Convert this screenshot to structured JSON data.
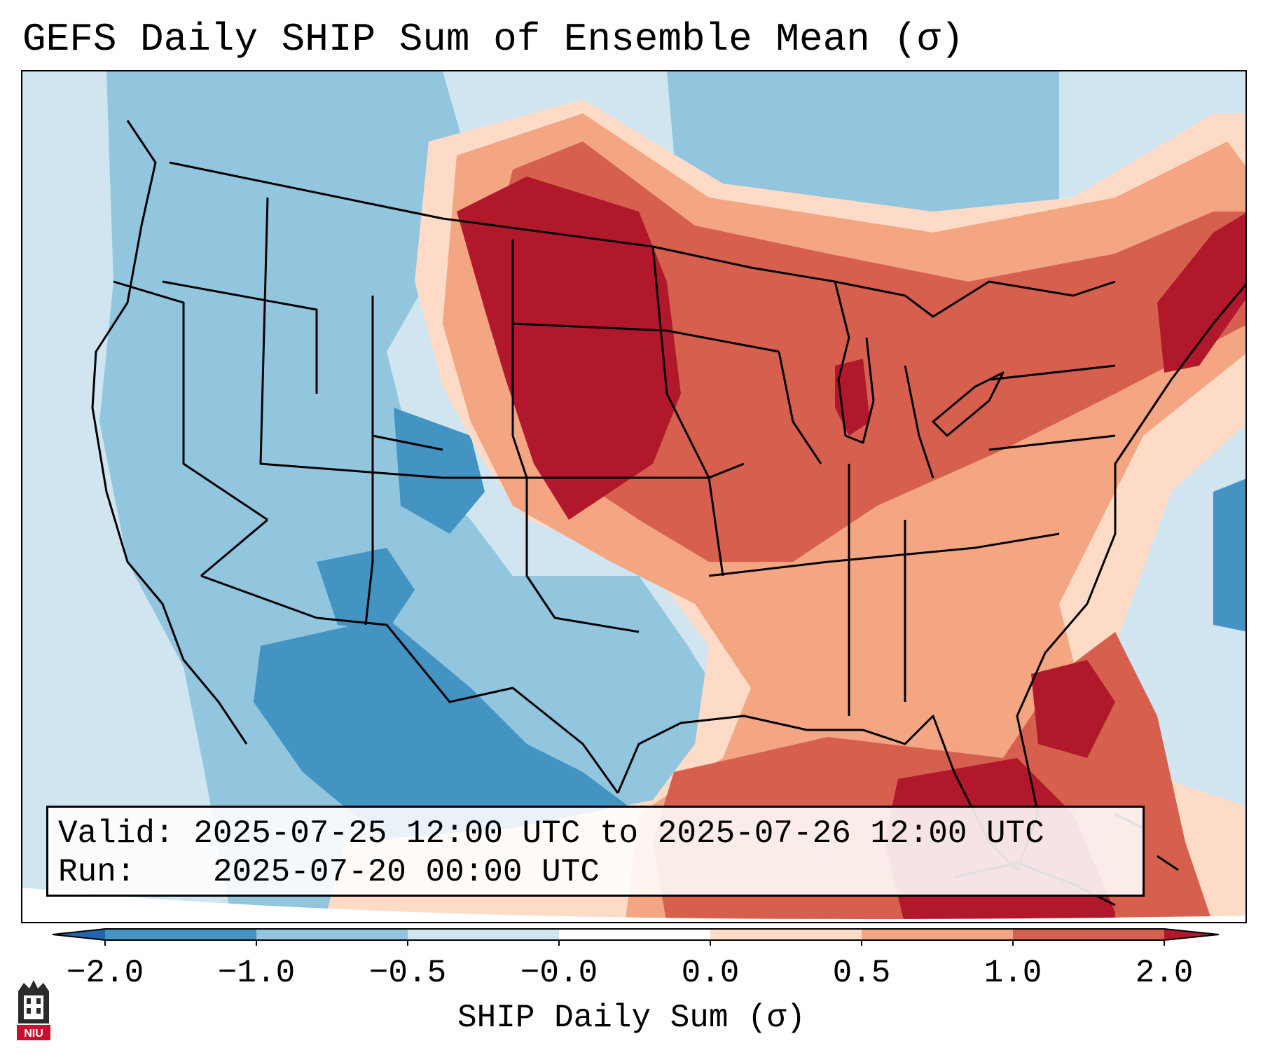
{
  "title": "GEFS Daily SHIP Sum of Ensemble Mean (σ)",
  "info": {
    "valid_label": "Valid:",
    "valid_value": "2025-07-25 12:00 UTC to 2025-07-26 12:00 UTC",
    "run_label": "Run:",
    "run_value": "2025-07-20 00:00 UTC"
  },
  "colorbar": {
    "title": "SHIP Daily Sum (σ)",
    "ticks": [
      "−2.0",
      "−1.0",
      "−0.5",
      "−0.0",
      "0.0",
      "0.5",
      "1.0",
      "2.0"
    ],
    "colors": [
      "#4393c3",
      "#92c5de",
      "#d1e5f0",
      "#fddbc7",
      "#f4a582",
      "#d6604d",
      "#b2182b"
    ],
    "extend_low_color": "#2166ac",
    "extend_high_color": "#67001f"
  },
  "map": {
    "ocean_color": "#d1e5f0",
    "regions": [
      {
        "name": "northern-plains-max",
        "category": 2.0
      },
      {
        "name": "great-lakes-high",
        "category": 1.0
      },
      {
        "name": "gulf-of-mexico-high",
        "category": 1.5
      },
      {
        "name": "southwest-low",
        "category": -1.5
      },
      {
        "name": "northeast-high",
        "category": 1.5
      }
    ]
  },
  "logo": {
    "text": "NIU"
  }
}
